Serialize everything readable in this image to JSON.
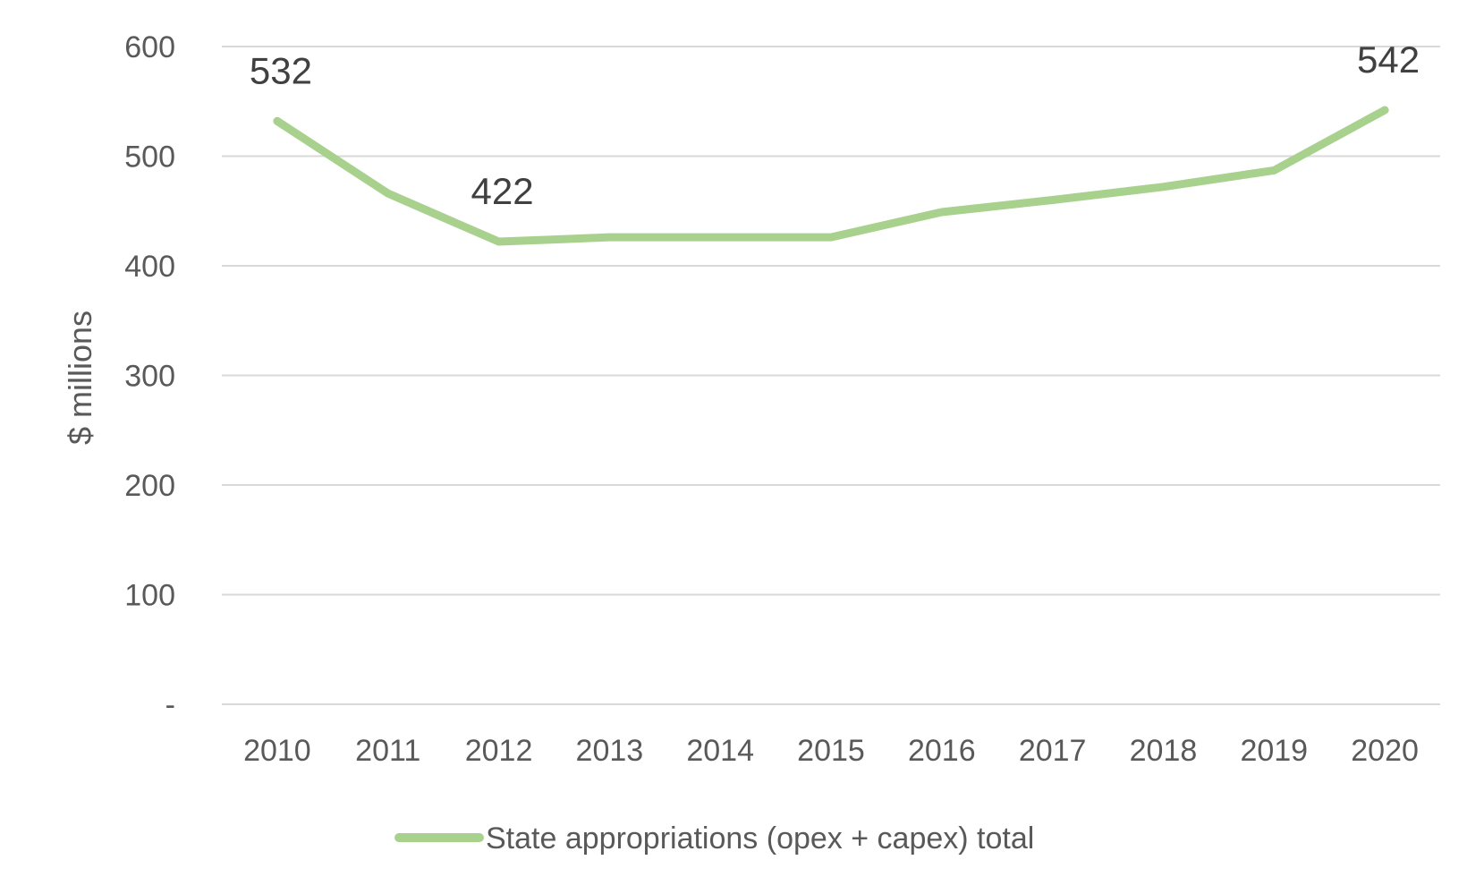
{
  "chart_data": {
    "type": "line",
    "title": "",
    "xlabel": "",
    "ylabel": "$ millions",
    "ylim": [
      0,
      600
    ],
    "y_ticks": [
      {
        "value": 0,
        "label": "-"
      },
      {
        "value": 100,
        "label": "100"
      },
      {
        "value": 200,
        "label": "200"
      },
      {
        "value": 300,
        "label": "300"
      },
      {
        "value": 400,
        "label": "400"
      },
      {
        "value": 500,
        "label": "500"
      },
      {
        "value": 600,
        "label": "600"
      }
    ],
    "grid": true,
    "legend_position": "bottom",
    "categories": [
      "2010",
      "2011",
      "2012",
      "2013",
      "2014",
      "2015",
      "2016",
      "2017",
      "2018",
      "2019",
      "2020"
    ],
    "series": [
      {
        "name": "State appropriations (opex + capex) total",
        "color": "#a9d18e",
        "values": [
          532,
          466,
          422,
          426,
          426,
          426,
          449,
          460,
          472,
          487,
          542
        ]
      }
    ],
    "data_labels": [
      {
        "index": 0,
        "text": "532"
      },
      {
        "index": 2,
        "text": "422"
      },
      {
        "index": 10,
        "text": "542"
      }
    ]
  }
}
